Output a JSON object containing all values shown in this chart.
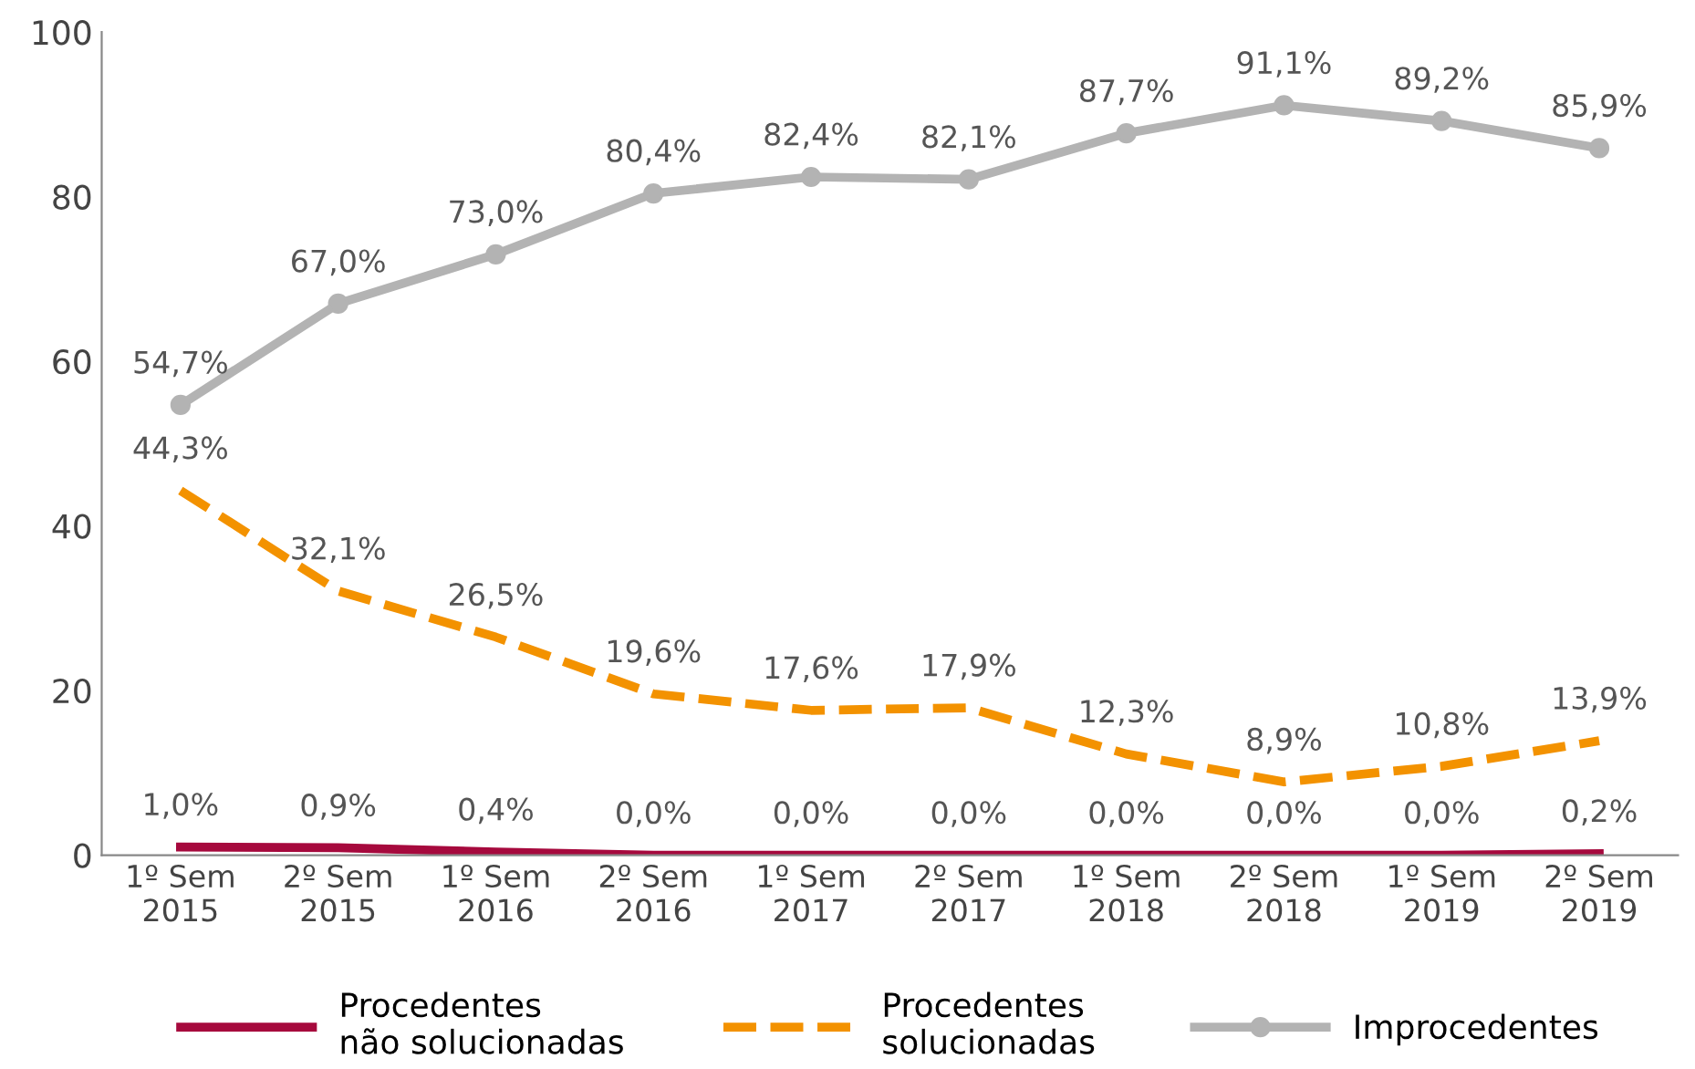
{
  "chart_data": {
    "type": "line",
    "categories": [
      "1º Sem\n2015",
      "2º Sem\n2015",
      "1º Sem\n2016",
      "2º Sem\n2016",
      "1º Sem\n2017",
      "2º Sem\n2017",
      "1º Sem\n2018",
      "2º Sem\n2018",
      "1º Sem\n2019",
      "2º Sem\n2019"
    ],
    "series": [
      {
        "name": "Procedentes\nnão solucionadas",
        "color": "#a6093d",
        "line_style": "solid",
        "marker": "none",
        "values": [
          1.0,
          0.9,
          0.4,
          0.0,
          0.0,
          0.0,
          0.0,
          0.0,
          0.0,
          0.2
        ],
        "value_labels": [
          "1,0%",
          "0,9%",
          "0,4%",
          "0,0%",
          "0,0%",
          "0,0%",
          "0,0%",
          "0,0%",
          "0,0%",
          "0,2%"
        ]
      },
      {
        "name": "Procedentes\nsolucionadas",
        "color": "#f39200",
        "line_style": "dashed",
        "marker": "none",
        "values": [
          44.3,
          32.1,
          26.5,
          19.6,
          17.6,
          17.9,
          12.3,
          8.9,
          10.8,
          13.9
        ],
        "value_labels": [
          "44,3%",
          "32,1%",
          "26,5%",
          "19,6%",
          "17,6%",
          "17,9%",
          "12,3%",
          "8,9%",
          "10,8%",
          "13,9%"
        ]
      },
      {
        "name": "Improcedentes",
        "color": "#b3b3b3",
        "line_style": "solid",
        "marker": "circle",
        "values": [
          54.7,
          67.0,
          73.0,
          80.4,
          82.4,
          82.1,
          87.7,
          91.1,
          89.2,
          85.9
        ],
        "value_labels": [
          "54,7%",
          "67,0%",
          "73,0%",
          "80,4%",
          "82,4%",
          "82,1%",
          "87,7%",
          "91,1%",
          "89,2%",
          "85,9%"
        ]
      }
    ],
    "ylim": [
      0,
      100
    ],
    "yticks": [
      0,
      20,
      40,
      60,
      80,
      100
    ],
    "grid": false,
    "legend": "bottom"
  }
}
